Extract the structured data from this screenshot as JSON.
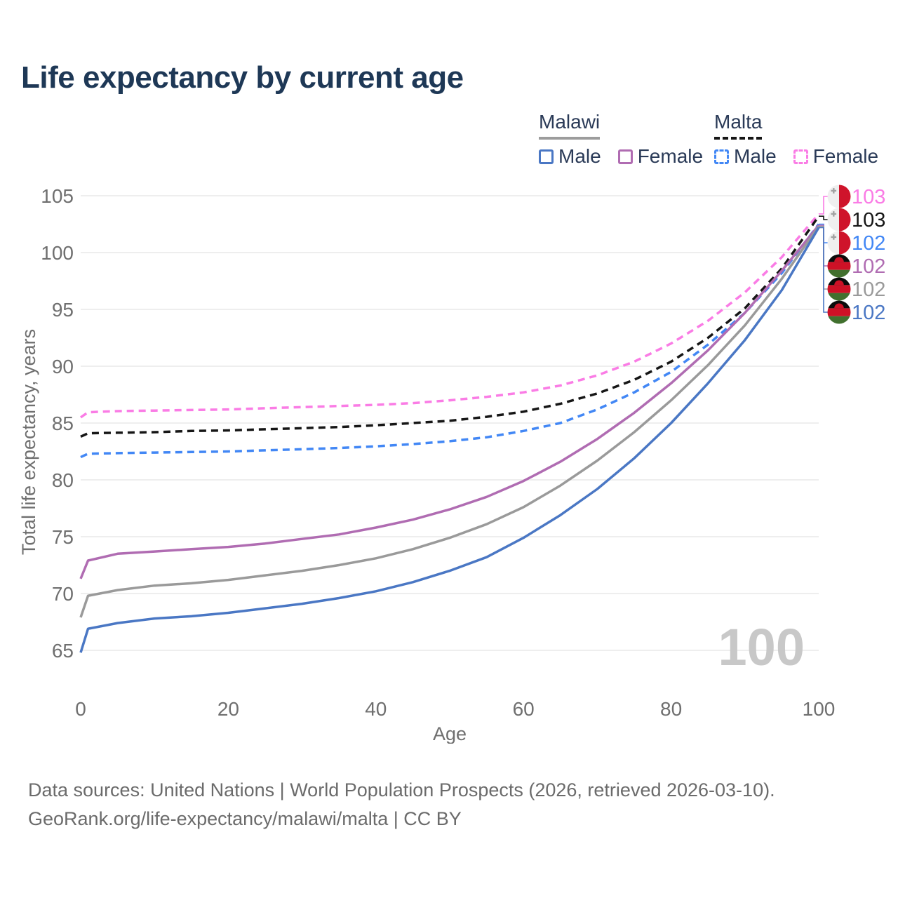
{
  "title": "Life expectancy by current age",
  "watermark": "100",
  "colors": {
    "background": "#ffffff",
    "title": "#1e3856",
    "legend_text": "#2a3a57",
    "axis_text": "#6f6f6f",
    "grid": "#e8e8e8",
    "watermark": "#c8c8c8",
    "malawi_male": "#4a77c4",
    "malawi_female": "#b06cb2",
    "malawi_total": "#9a9a9a",
    "malta_male": "#4287f5",
    "malta_female": "#fa7ce5",
    "malta_total": "#161616"
  },
  "legend": {
    "groups": [
      {
        "label": "Malawi",
        "underline_style": "solid",
        "underline_color": "#9c9c9c",
        "items": [
          {
            "label": "Male",
            "color": "#4a77c4",
            "dashed": false
          },
          {
            "label": "Female",
            "color": "#b06cb2",
            "dashed": false
          }
        ]
      },
      {
        "label": "Malta",
        "underline_style": "dashed",
        "underline_color": "#161616",
        "items": [
          {
            "label": "Male",
            "color": "#4287f5",
            "dashed": true
          },
          {
            "label": "Female",
            "color": "#fa7ce5",
            "dashed": true
          }
        ]
      }
    ]
  },
  "chart_data": {
    "type": "line",
    "title": "Life expectancy by current age",
    "xlabel": "Age",
    "ylabel": "Total life expectancy, years",
    "xlim": [
      0,
      100
    ],
    "ylim": [
      65,
      105
    ],
    "x_ticks": [
      0,
      20,
      40,
      60,
      80,
      100
    ],
    "y_ticks": [
      65,
      70,
      75,
      80,
      85,
      90,
      95,
      100,
      105
    ],
    "grid": "horizontal",
    "legend_position": "top-right",
    "x": [
      0,
      1,
      5,
      10,
      15,
      20,
      25,
      30,
      35,
      40,
      45,
      50,
      55,
      60,
      65,
      70,
      75,
      80,
      85,
      90,
      95,
      100
    ],
    "series": [
      {
        "name": "Malta Female",
        "country": "Malta",
        "sex": "Female",
        "color": "#fa7ce5",
        "dash": true,
        "end_label": "103",
        "flag": "malta",
        "values": [
          85.5,
          85.95,
          86.05,
          86.1,
          86.15,
          86.2,
          86.3,
          86.4,
          86.5,
          86.6,
          86.75,
          87.0,
          87.3,
          87.7,
          88.3,
          89.2,
          90.4,
          92.0,
          94.0,
          96.5,
          99.6,
          103.4
        ]
      },
      {
        "name": "Malta Both sexes",
        "country": "Malta",
        "sex": "Both",
        "color": "#161616",
        "dash": true,
        "end_label": "103",
        "flag": "malta",
        "values": [
          83.8,
          84.1,
          84.15,
          84.2,
          84.3,
          84.35,
          84.45,
          84.55,
          84.65,
          84.8,
          85.0,
          85.2,
          85.55,
          86.0,
          86.7,
          87.6,
          88.8,
          90.4,
          92.5,
          95.1,
          98.6,
          103.2
        ]
      },
      {
        "name": "Malta Male",
        "country": "Malta",
        "sex": "Male",
        "color": "#4287f5",
        "dash": true,
        "end_label": "102",
        "flag": "malta",
        "values": [
          82.0,
          82.3,
          82.35,
          82.4,
          82.45,
          82.5,
          82.6,
          82.7,
          82.8,
          82.95,
          83.15,
          83.4,
          83.75,
          84.3,
          85.0,
          86.2,
          87.7,
          89.5,
          91.9,
          94.7,
          98.2,
          102.5
        ]
      },
      {
        "name": "Malawi Female",
        "country": "Malawi",
        "sex": "Female",
        "color": "#b06cb2",
        "dash": false,
        "end_label": "102",
        "flag": "malawi",
        "values": [
          71.3,
          72.9,
          73.5,
          73.7,
          73.9,
          74.1,
          74.4,
          74.8,
          75.2,
          75.8,
          76.5,
          77.4,
          78.5,
          79.9,
          81.6,
          83.6,
          85.9,
          88.5,
          91.4,
          94.7,
          98.4,
          102.4
        ]
      },
      {
        "name": "Malawi Both sexes",
        "country": "Malawi",
        "sex": "Both",
        "color": "#9a9a9a",
        "dash": false,
        "end_label": "102",
        "flag": "malawi",
        "values": [
          67.9,
          69.8,
          70.3,
          70.7,
          70.9,
          71.2,
          71.6,
          72.0,
          72.5,
          73.1,
          73.9,
          74.9,
          76.1,
          77.6,
          79.5,
          81.7,
          84.2,
          87.0,
          90.1,
          93.6,
          97.7,
          102.3
        ]
      },
      {
        "name": "Malawi Male",
        "country": "Malawi",
        "sex": "Male",
        "color": "#4a77c4",
        "dash": false,
        "end_label": "102",
        "flag": "malawi",
        "values": [
          64.8,
          66.9,
          67.4,
          67.8,
          68.0,
          68.3,
          68.7,
          69.1,
          69.6,
          70.2,
          71.0,
          72.0,
          73.2,
          74.9,
          76.9,
          79.2,
          81.9,
          85.0,
          88.5,
          92.3,
          96.7,
          102.2
        ]
      }
    ]
  },
  "footer": {
    "line1": "Data sources: United Nations | World Population Prospects (2026, retrieved 2026-03-10).",
    "line2": "GeoRank.org/life-expectancy/malawi/malta | CC BY"
  }
}
